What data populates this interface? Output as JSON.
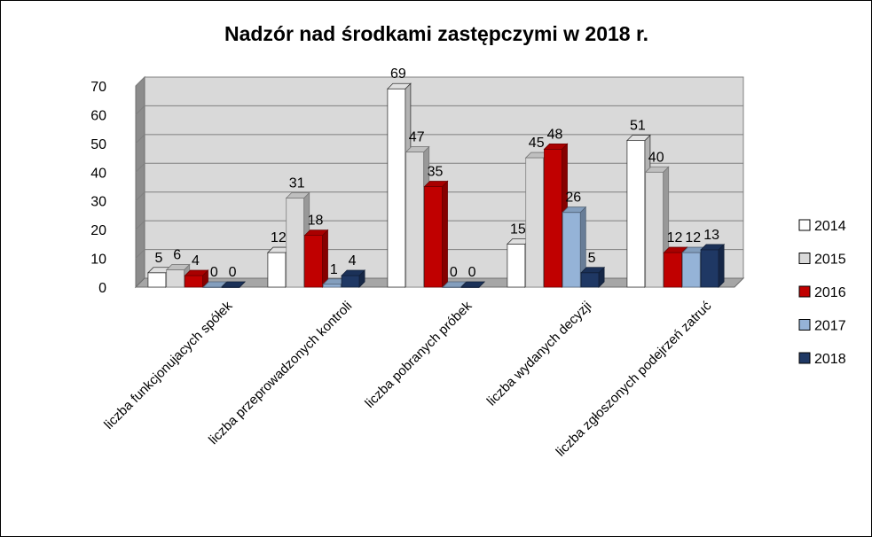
{
  "chart_data": {
    "type": "bar",
    "title": "Nadzór nad środkami zastępczymi w 2018 r.",
    "xlabel": "",
    "ylabel": "",
    "ylim": [
      0,
      70
    ],
    "yticks": [
      0,
      10,
      20,
      30,
      40,
      50,
      60,
      70
    ],
    "grid": true,
    "legend_position": "right",
    "categories": [
      "liczba funkcjonujacych spółek",
      "liczba przeprowadzonych kontroli",
      "liczba pobranych próbek",
      "liczba wydanych decyzji",
      "liczba zgłoszonych podejrzeń zatruć"
    ],
    "series": [
      {
        "name": "2014",
        "color": "#ffffff",
        "values": [
          5,
          12,
          69,
          15,
          51
        ]
      },
      {
        "name": "2015",
        "color": "#d9d9d9",
        "values": [
          6,
          31,
          47,
          45,
          40
        ]
      },
      {
        "name": "2016",
        "color": "#c00000",
        "values": [
          4,
          18,
          35,
          48,
          12
        ]
      },
      {
        "name": "2017",
        "color": "#95b3d7",
        "values": [
          0,
          1,
          0,
          26,
          12
        ]
      },
      {
        "name": "2018",
        "color": "#1f3864",
        "values": [
          0,
          4,
          0,
          5,
          13
        ]
      }
    ]
  }
}
